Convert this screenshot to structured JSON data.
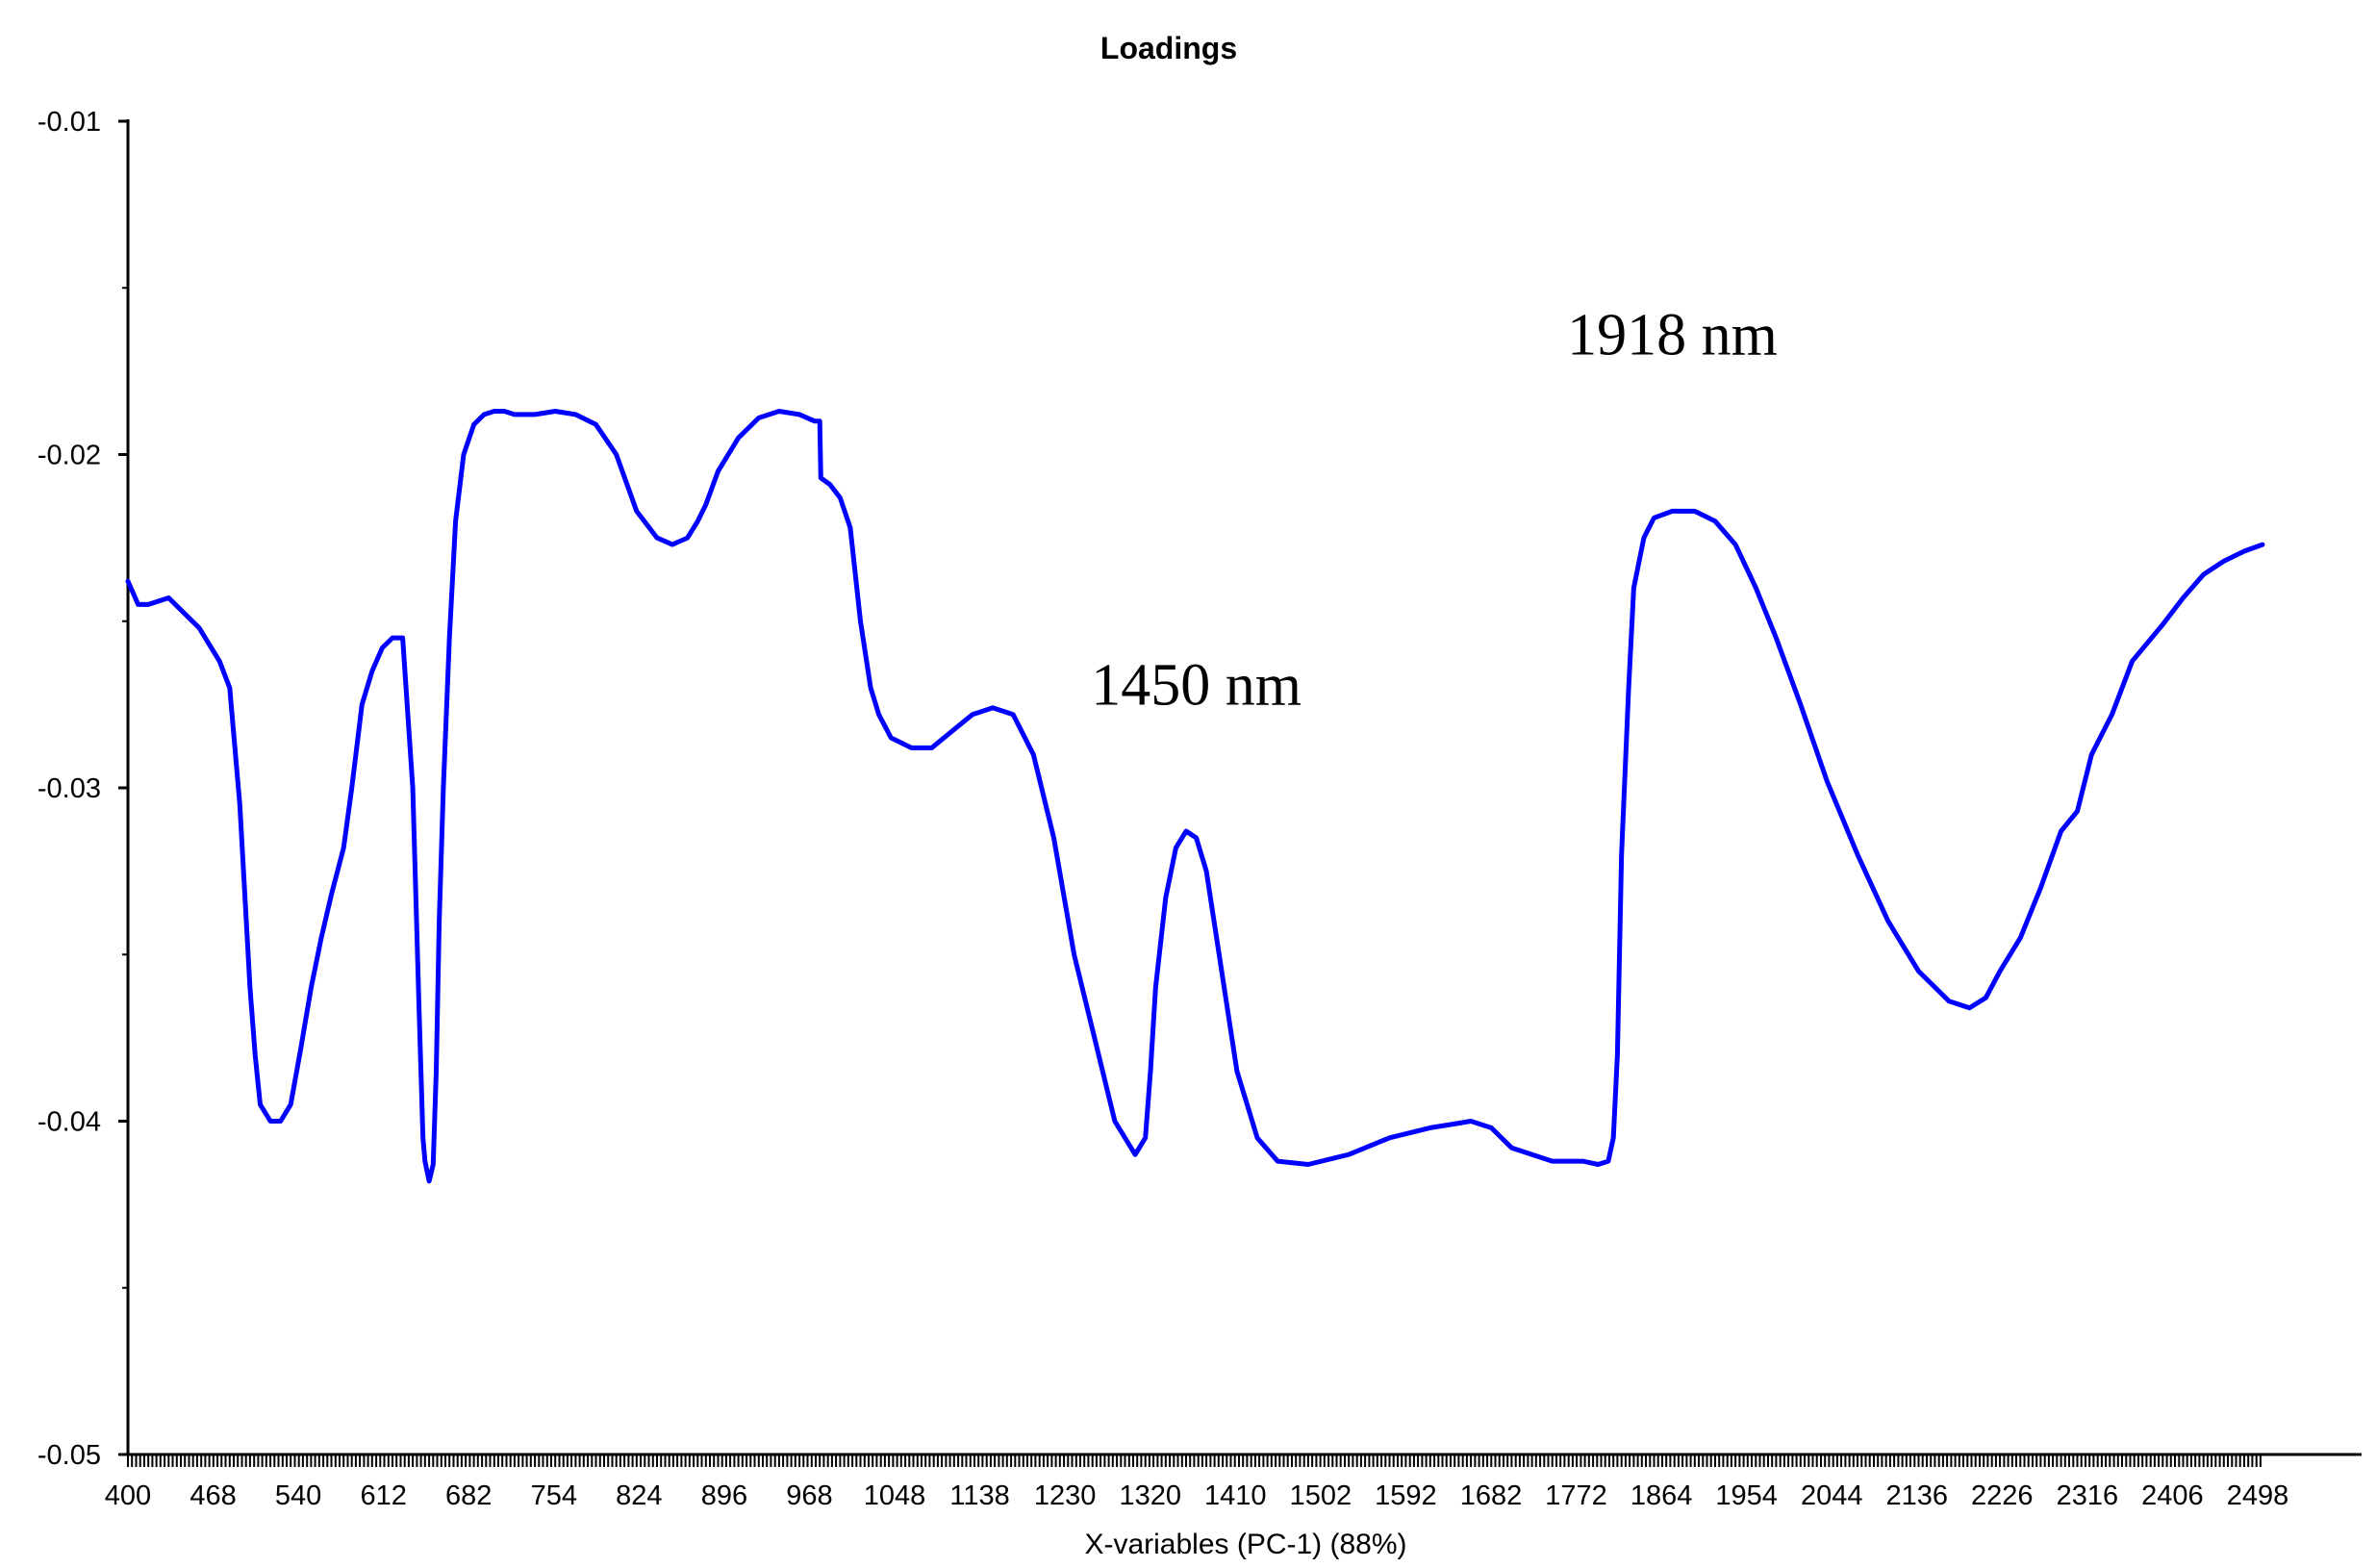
{
  "chart_data": {
    "type": "line",
    "title": "Loadings",
    "xlabel": "X-variables (PC-1) (88%)",
    "ylabel": "",
    "xlim": [
      400,
      2498
    ],
    "ylim": [
      -0.05,
      -0.01
    ],
    "x_tick_labels": [
      "400",
      "468",
      "540",
      "612",
      "682",
      "754",
      "824",
      "896",
      "968",
      "1048",
      "1138",
      "1230",
      "1320",
      "1410",
      "1502",
      "1592",
      "1682",
      "1772",
      "1864",
      "1954",
      "2044",
      "2136",
      "2226",
      "2316",
      "2406",
      "2498"
    ],
    "y_ticks": [
      -0.01,
      -0.02,
      -0.03,
      -0.04,
      -0.05
    ],
    "y_tick_labels": [
      "-0.01",
      "-0.02",
      "-0.03",
      "-0.04",
      "-0.05"
    ],
    "grid": false,
    "line_color": "#0000ff",
    "annotations": [
      {
        "text": "1918 nm",
        "x": 1918,
        "y": -0.017
      },
      {
        "text": "1450 nm",
        "x": 1450,
        "y": -0.0275
      }
    ],
    "series": [
      {
        "name": "",
        "x": [
          400,
          410,
          420,
          440,
          470,
          490,
          500,
          510,
          520,
          525,
          530,
          540,
          550,
          560,
          570,
          580,
          590,
          600,
          612,
          620,
          630,
          640,
          650,
          660,
          670,
          680,
          686,
          690,
          692,
          696,
          700,
          703,
          706,
          710,
          716,
          722,
          730,
          740,
          750,
          760,
          770,
          780,
          800,
          820,
          840,
          860,
          880,
          900,
          920,
          935,
          950,
          960,
          968,
          980,
          1000,
          1020,
          1040,
          1060,
          1075,
          1080,
          1081,
          1090,
          1100,
          1110,
          1120,
          1130,
          1138,
          1150,
          1170,
          1190,
          1210,
          1230,
          1250,
          1270,
          1290,
          1310,
          1330,
          1350,
          1370,
          1390,
          1400,
          1405,
          1410,
          1420,
          1430,
          1440,
          1450,
          1460,
          1470,
          1480,
          1490,
          1510,
          1530,
          1560,
          1600,
          1640,
          1680,
          1700,
          1720,
          1740,
          1760,
          1800,
          1830,
          1845,
          1855,
          1860,
          1864,
          1868,
          1875,
          1880,
          1890,
          1900,
          1918,
          1940,
          1960,
          1980,
          2000,
          2020,
          2044,
          2070,
          2100,
          2130,
          2160,
          2190,
          2210,
          2226,
          2240,
          2260,
          2280,
          2300,
          2316,
          2330,
          2350,
          2370,
          2400,
          2420,
          2440,
          2460,
          2480,
          2498
        ],
        "y": [
          -0.0238,
          -0.0245,
          -0.0245,
          -0.0243,
          -0.0252,
          -0.0262,
          -0.027,
          -0.0305,
          -0.036,
          -0.038,
          -0.0395,
          -0.04,
          -0.04,
          -0.0395,
          -0.0378,
          -0.036,
          -0.0345,
          -0.0332,
          -0.0318,
          -0.03,
          -0.0275,
          -0.0265,
          -0.0258,
          -0.0255,
          -0.0255,
          -0.03,
          -0.0365,
          -0.0405,
          -0.0412,
          -0.0418,
          -0.0413,
          -0.0385,
          -0.034,
          -0.03,
          -0.0255,
          -0.022,
          -0.02,
          -0.0191,
          -0.0188,
          -0.0187,
          -0.0187,
          -0.0188,
          -0.0188,
          -0.0187,
          -0.0188,
          -0.0191,
          -0.02,
          -0.0217,
          -0.0225,
          -0.0227,
          -0.0225,
          -0.022,
          -0.0215,
          -0.0205,
          -0.0195,
          -0.0189,
          -0.0187,
          -0.0188,
          -0.019,
          -0.019,
          -0.0207,
          -0.0209,
          -0.0213,
          -0.0222,
          -0.025,
          -0.027,
          -0.0278,
          -0.0285,
          -0.0288,
          -0.0288,
          -0.0283,
          -0.0278,
          -0.0276,
          -0.0278,
          -0.029,
          -0.0315,
          -0.035,
          -0.0375,
          -0.04,
          -0.041,
          -0.0405,
          -0.0385,
          -0.036,
          -0.0333,
          -0.0318,
          -0.0313,
          -0.0315,
          -0.0325,
          -0.0345,
          -0.0365,
          -0.0385,
          -0.0405,
          -0.0412,
          -0.0413,
          -0.041,
          -0.0405,
          -0.0402,
          -0.0401,
          -0.04,
          -0.0402,
          -0.0408,
          -0.0412,
          -0.0412,
          -0.0413,
          -0.0412,
          -0.0405,
          -0.038,
          -0.032,
          -0.027,
          -0.024,
          -0.0225,
          -0.0219,
          -0.0217,
          -0.0217,
          -0.022,
          -0.0227,
          -0.024,
          -0.0255,
          -0.0275,
          -0.0298,
          -0.032,
          -0.034,
          -0.0355,
          -0.0364,
          -0.0366,
          -0.0363,
          -0.0355,
          -0.0345,
          -0.033,
          -0.0313,
          -0.0307,
          -0.029,
          -0.0278,
          -0.0262,
          -0.0251,
          -0.0243,
          -0.0236,
          -0.0232,
          -0.0229,
          -0.0227
        ]
      }
    ]
  }
}
